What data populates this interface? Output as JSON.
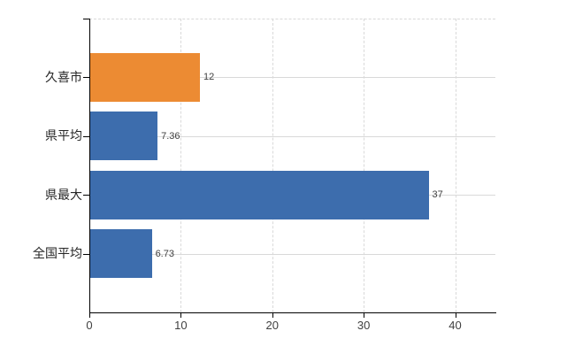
{
  "chart_data": {
    "type": "bar",
    "orientation": "horizontal",
    "title": "",
    "xlabel": "",
    "ylabel": "",
    "categories": [
      "久喜市",
      "県平均",
      "県最大",
      "全国平均"
    ],
    "values": [
      12,
      7.36,
      37,
      6.73
    ],
    "value_labels": [
      "12",
      "7.36",
      "37",
      "6.73"
    ],
    "bar_colors": [
      "#EC8B33",
      "#3D6DAD",
      "#3D6DAD",
      "#3D6DAD"
    ],
    "x_ticks": [
      0,
      10,
      20,
      30,
      40
    ],
    "x_tick_labels": [
      "0",
      "10",
      "20",
      "30",
      "40"
    ],
    "xlim": [
      0,
      44.4
    ],
    "grid": true,
    "legend": false
  },
  "colors": {
    "background": "#ffffff",
    "axis": "#000000",
    "grid": "#d9d9d9",
    "value_label": "#404040",
    "category_label": "#262626",
    "tick_label": "#404040",
    "highlight_bar": "#EC8B33",
    "default_bar": "#3D6DAD"
  }
}
